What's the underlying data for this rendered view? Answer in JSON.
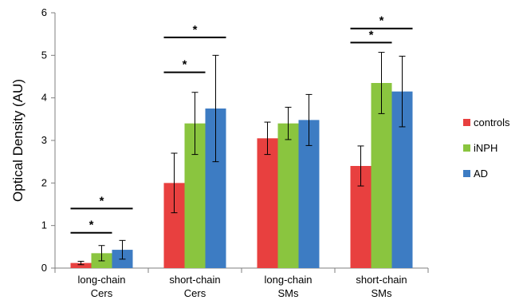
{
  "chart_data": {
    "type": "bar",
    "ylabel": "Optical Density (AU)",
    "ylim": [
      0,
      6
    ],
    "yticks": [
      0,
      1,
      2,
      3,
      4,
      5,
      6
    ],
    "grid": false,
    "legend_position": "right",
    "categories": [
      [
        "long-chain",
        "Cers"
      ],
      [
        "short-chain",
        "Cers"
      ],
      [
        "long-chain",
        "SMs"
      ],
      [
        "short-chain",
        "SMs"
      ]
    ],
    "series": [
      {
        "name": "controls",
        "color": "#e8403f",
        "values": [
          0.12,
          2.0,
          3.05,
          2.4
        ],
        "errors": [
          0.04,
          0.7,
          0.38,
          0.47
        ]
      },
      {
        "name": "iNPH",
        "color": "#8ac53f",
        "values": [
          0.35,
          3.4,
          3.4,
          4.35
        ],
        "errors": [
          0.18,
          0.73,
          0.38,
          0.72
        ]
      },
      {
        "name": "AD",
        "color": "#3d7cc3",
        "values": [
          0.43,
          3.75,
          3.48,
          4.15
        ],
        "errors": [
          0.22,
          1.25,
          0.6,
          0.83
        ]
      }
    ],
    "significance": [
      {
        "category": 0,
        "from": 0,
        "to": 1,
        "level": 0.83,
        "label": "*"
      },
      {
        "category": 0,
        "from": 0,
        "to": 2,
        "level": 1.4,
        "label": "*"
      },
      {
        "category": 1,
        "from": 0,
        "to": 1,
        "level": 4.6,
        "label": "*"
      },
      {
        "category": 1,
        "from": 0,
        "to": 2,
        "level": 5.42,
        "label": "*"
      },
      {
        "category": 3,
        "from": 0,
        "to": 1,
        "level": 5.3,
        "label": "*"
      },
      {
        "category": 3,
        "from": 0,
        "to": 2,
        "level": 5.63,
        "label": "*"
      }
    ]
  }
}
